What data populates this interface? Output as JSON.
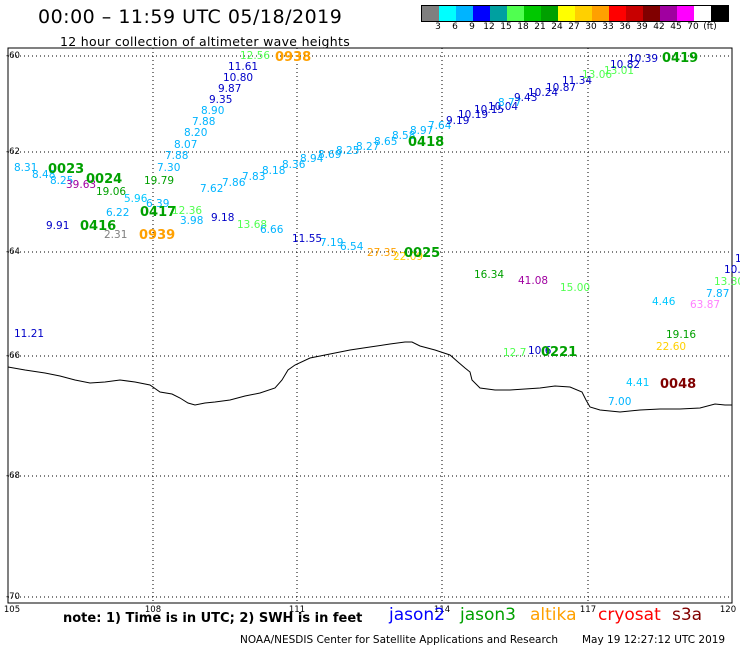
{
  "header": {
    "title": "00:00 – 11:59 UTC 05/18/2019",
    "subtitle": "12 hour collection of altimeter wave heights"
  },
  "legend": {
    "colors": [
      "#7f7f7f",
      "#00ffff",
      "#00b4ff",
      "#0000ff",
      "#00a0a0",
      "#50ff50",
      "#00c800",
      "#00a000",
      "#ffff00",
      "#ffd000",
      "#ffa000",
      "#ff0000",
      "#c80000",
      "#800000",
      "#a000a0",
      "#ff00ff",
      "#ffffff",
      "#000000"
    ],
    "tick_labels": [
      "3",
      "6",
      "9",
      "12",
      "15",
      "18",
      "21",
      "24",
      "27",
      "30",
      "33",
      "36",
      "39",
      "42",
      "45",
      "70",
      "(ft)"
    ]
  },
  "axes": {
    "lat_labels": [
      "-60",
      "-62",
      "-64",
      "-66",
      "-68",
      "-70"
    ],
    "lon_labels": [
      "105",
      "108",
      "111",
      "114",
      "117",
      "120"
    ]
  },
  "wave_labels": [
    {
      "t": "12.56",
      "c": "#50ff50"
    },
    {
      "t": "11.61",
      "c": "#0000c8"
    },
    {
      "t": "10.80",
      "c": "#0000c8"
    },
    {
      "t": "9.87",
      "c": "#0000c8"
    },
    {
      "t": "9.35",
      "c": "#0000c8"
    },
    {
      "t": "8.90",
      "c": "#00b4ff"
    },
    {
      "t": "7.88",
      "c": "#00b4ff"
    },
    {
      "t": "8.20",
      "c": "#00b4ff"
    },
    {
      "t": "8.07",
      "c": "#00b4ff"
    },
    {
      "t": "7.88",
      "c": "#00b4ff"
    },
    {
      "t": "7.30",
      "c": "#00b4ff"
    },
    {
      "t": "19.79",
      "c": "#00a000"
    },
    {
      "t": "8.31",
      "c": "#00b4ff"
    },
    {
      "t": "8.48",
      "c": "#00b4ff"
    },
    {
      "t": "8.25",
      "c": "#00b4ff"
    },
    {
      "t": "39.63",
      "c": "#a000a0"
    },
    {
      "t": "19.06",
      "c": "#00a000"
    },
    {
      "t": "5.96",
      "c": "#00c8ff"
    },
    {
      "t": "6.39",
      "c": "#00b4ff"
    },
    {
      "t": "6.22",
      "c": "#00b4ff"
    },
    {
      "t": "12.36",
      "c": "#50ff50"
    },
    {
      "t": "9.91",
      "c": "#0000c8"
    },
    {
      "t": "2.31",
      "c": "#7f7f7f"
    },
    {
      "t": "3.98",
      "c": "#00b4ff"
    },
    {
      "t": "7.62",
      "c": "#00b4ff"
    },
    {
      "t": "7.86",
      "c": "#00b4ff"
    },
    {
      "t": "7.83",
      "c": "#00b4ff"
    },
    {
      "t": "8.18",
      "c": "#00b4ff"
    },
    {
      "t": "8.36",
      "c": "#00b4ff"
    },
    {
      "t": "8.94",
      "c": "#00b4ff"
    },
    {
      "t": "8.69",
      "c": "#00b4ff"
    },
    {
      "t": "8.25",
      "c": "#00b4ff"
    },
    {
      "t": "8.27",
      "c": "#00b4ff"
    },
    {
      "t": "8.65",
      "c": "#00b4ff"
    },
    {
      "t": "8.58",
      "c": "#00b4ff"
    },
    {
      "t": "8.97",
      "c": "#00b4ff"
    },
    {
      "t": "7.64",
      "c": "#00b4ff"
    },
    {
      "t": "9.19",
      "c": "#0000c8"
    },
    {
      "t": "10.19",
      "c": "#0000c8"
    },
    {
      "t": "10.15",
      "c": "#0000c8"
    },
    {
      "t": "10.04",
      "c": "#0000c8"
    },
    {
      "t": "8.77",
      "c": "#00b4ff"
    },
    {
      "t": "9.43",
      "c": "#0000c8"
    },
    {
      "t": "10.24",
      "c": "#0000c8"
    },
    {
      "t": "10.87",
      "c": "#0000c8"
    },
    {
      "t": "11.34",
      "c": "#0000c8"
    },
    {
      "t": "13.06",
      "c": "#50ff50"
    },
    {
      "t": "13.01",
      "c": "#50ff50"
    },
    {
      "t": "10.82",
      "c": "#0000c8"
    },
    {
      "t": "10.39",
      "c": "#0000c8"
    },
    {
      "t": "9.18",
      "c": "#0000c8"
    },
    {
      "t": "13.68",
      "c": "#50ff50"
    },
    {
      "t": "6.66",
      "c": "#00b4ff"
    },
    {
      "t": "11.55",
      "c": "#0000c8"
    },
    {
      "t": "7.19",
      "c": "#00b4ff"
    },
    {
      "t": "6.54",
      "c": "#00b4ff"
    },
    {
      "t": "27.35",
      "c": "#ffa000"
    },
    {
      "t": "22.09",
      "c": "#ffd000"
    },
    {
      "t": "16.34",
      "c": "#00a000"
    },
    {
      "t": "41.08",
      "c": "#a000a0"
    },
    {
      "t": "15.00",
      "c": "#50ff50"
    },
    {
      "t": "11.21",
      "c": "#0000c8"
    },
    {
      "t": "12.7",
      "c": "#50ff50"
    },
    {
      "t": "10.6",
      "c": "#0000c8"
    },
    {
      "t": "4.46",
      "c": "#00c8ff"
    },
    {
      "t": "7.87",
      "c": "#00b4ff"
    },
    {
      "t": "63.87",
      "c": "#ff80ff"
    },
    {
      "t": "13.30",
      "c": "#50ff50"
    },
    {
      "t": "10.",
      "c": "#0000c8"
    },
    {
      "t": "1",
      "c": "#0000c8"
    },
    {
      "t": "19.16",
      "c": "#00a000"
    },
    {
      "t": "22.60",
      "c": "#ffd000"
    },
    {
      "t": "4.41",
      "c": "#00c8ff"
    },
    {
      "t": "7.00",
      "c": "#00b4ff"
    }
  ],
  "pass_labels": [
    {
      "t": "0938",
      "c": "#ffa000"
    },
    {
      "t": "0419",
      "c": "#00a000"
    },
    {
      "t": "0418",
      "c": "#00a000"
    },
    {
      "t": "0023",
      "c": "#00a000"
    },
    {
      "t": "0024",
      "c": "#00a000"
    },
    {
      "t": "0417",
      "c": "#00a000"
    },
    {
      "t": "0416",
      "c": "#00a000"
    },
    {
      "t": "0939",
      "c": "#ffa000"
    },
    {
      "t": "0025",
      "c": "#00a000"
    },
    {
      "t": "0221",
      "c": "#00a000"
    },
    {
      "t": "0048",
      "c": "#800000"
    }
  ],
  "footer": {
    "note": "note:  1) Time is in UTC; 2) SWH is in feet",
    "satellites": [
      {
        "name": "jason2",
        "color": "#0000ff"
      },
      {
        "name": "jason3",
        "color": "#00a000"
      },
      {
        "name": "altika",
        "color": "#ffa000"
      },
      {
        "name": "cryosat",
        "color": "#ff0000"
      },
      {
        "name": "s3a",
        "color": "#800000"
      }
    ],
    "credit": "NOAA/NESDIS Center for Satellite Applications and Research",
    "timestamp": "May 19 12:27:12 UTC 2019"
  }
}
